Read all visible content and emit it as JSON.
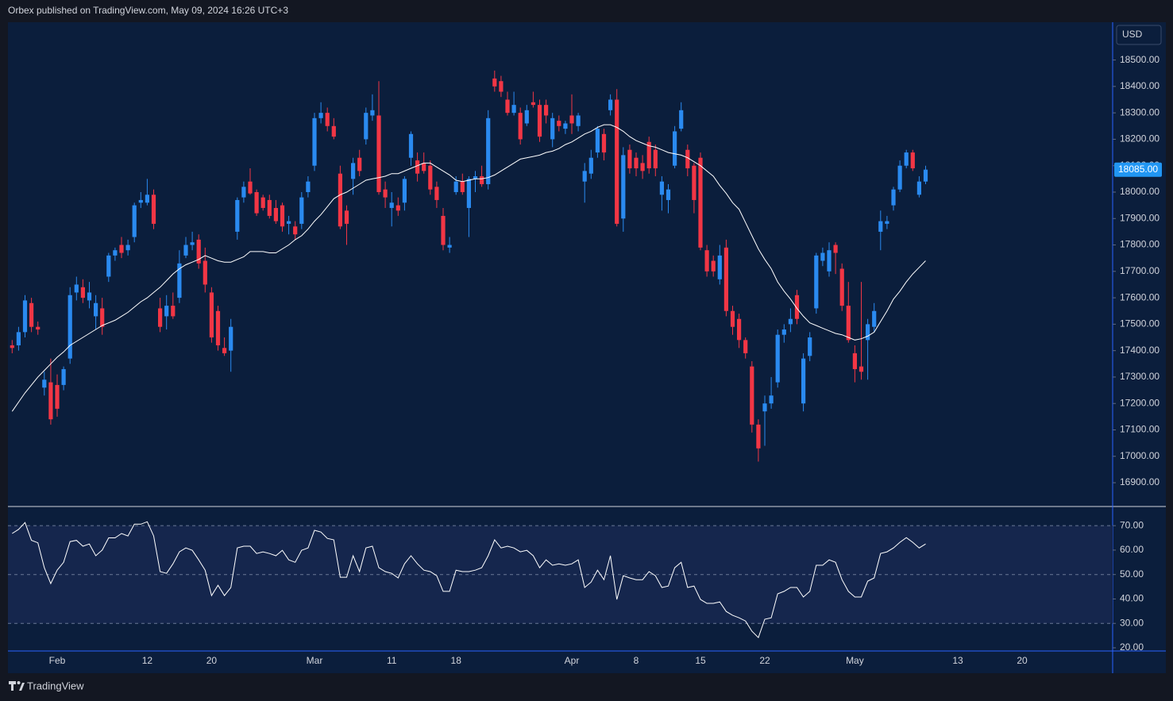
{
  "header": {
    "text": "Orbex published on TradingView.com, May 09, 2024 16:26 UTC+3"
  },
  "currency": "USD",
  "footer": {
    "brand": "TradingView"
  },
  "chart_data": [
    {
      "type": "candlestick",
      "categories": [
        null,
        null,
        null,
        null,
        null,
        null,
        null,
        "Feb",
        null,
        null,
        null,
        null,
        null,
        null,
        null,
        null,
        null,
        null,
        null,
        null,
        null,
        "12",
        null,
        null,
        null,
        null,
        null,
        null,
        null,
        null,
        null,
        "20",
        null,
        null,
        null,
        null,
        null,
        null,
        null,
        null,
        null,
        null,
        null,
        null,
        null,
        null,
        null,
        "Mar",
        null,
        null,
        null,
        null,
        null,
        null,
        null,
        null,
        null,
        null,
        null,
        "11",
        null,
        null,
        null,
        null,
        null,
        null,
        null,
        null,
        null,
        "18",
        null,
        null,
        null,
        null,
        null,
        null,
        null,
        null,
        null,
        null,
        null,
        null,
        null,
        null,
        null,
        null,
        null,
        "Apr",
        null,
        null,
        null,
        null,
        null,
        null,
        null,
        null,
        null,
        "8",
        null,
        null,
        null,
        null,
        null,
        null,
        null,
        null,
        null,
        "15",
        null,
        null,
        null,
        null,
        null,
        null,
        null,
        null,
        null,
        "22",
        null,
        null,
        null,
        null,
        null,
        null,
        null,
        null,
        null,
        null,
        null,
        null,
        null,
        "May",
        null,
        null,
        null,
        null,
        null,
        null,
        null,
        null,
        null,
        null,
        null,
        null,
        null,
        null,
        null,
        "13",
        null,
        null,
        null,
        null,
        null,
        null,
        null,
        null,
        null,
        "20"
      ],
      "open": [
        17420,
        17420,
        17470,
        17580,
        17490,
        17260,
        17280,
        17270,
        17270,
        17370,
        17620,
        17640,
        17590,
        17530,
        17560,
        17680,
        17760,
        17800,
        17780,
        17830,
        17960,
        17960,
        17990,
        17560,
        17530,
        17570,
        17600,
        17760,
        17800,
        17820,
        17740,
        17620,
        17550,
        17410,
        17400,
        17850,
        17980,
        18040,
        18000,
        17980,
        17970,
        17940,
        17950,
        17880,
        17870,
        17880,
        18000,
        18100,
        18280,
        18300,
        18250,
        18070,
        17930,
        18050,
        18130,
        18200,
        18290,
        18290,
        18010,
        17940,
        17950,
        17960,
        18130,
        18120,
        18110,
        18100,
        18020,
        17910,
        17790,
        18000,
        18040,
        17940,
        18050,
        18060,
        18030,
        18430,
        18420,
        18350,
        18300,
        18300,
        18260,
        18340,
        18330,
        18330,
        18200,
        18270,
        18240,
        18290,
        18250,
        18040,
        18070,
        18150,
        18220,
        18310,
        18350,
        17900,
        18160,
        18130,
        18110,
        18190,
        18160,
        17990,
        17970,
        18100,
        18240,
        18160,
        18100,
        18130,
        17780,
        17740,
        17670,
        17790,
        17550,
        17520,
        17440,
        17340,
        17120,
        17170,
        17200,
        17280,
        17460,
        17500,
        17610,
        17200,
        17380,
        17560,
        17740,
        17700,
        17800,
        17710,
        17570,
        17390,
        17340,
        17440,
        17490,
        17850,
        17880,
        17950,
        18010,
        18100,
        18150,
        17990,
        18040,
        null,
        null,
        null,
        null,
        null,
        null,
        null,
        null,
        null,
        null,
        null,
        null,
        null,
        null,
        null
      ],
      "high": [
        17440,
        17490,
        17610,
        17600,
        17510,
        17320,
        17370,
        17310,
        17340,
        17640,
        17680,
        17670,
        17660,
        17610,
        17600,
        17770,
        17790,
        17830,
        17820,
        17960,
        18000,
        18050,
        18010,
        17600,
        17610,
        17620,
        17780,
        17830,
        17850,
        17840,
        17790,
        17640,
        17570,
        17450,
        17520,
        17980,
        18040,
        18090,
        18010,
        17990,
        17990,
        17970,
        17960,
        17910,
        17890,
        18000,
        18060,
        18300,
        18340,
        18320,
        18280,
        18100,
        17950,
        18130,
        18160,
        18320,
        18370,
        18420,
        18040,
        18000,
        17980,
        18060,
        18230,
        18150,
        18150,
        18120,
        18040,
        17940,
        17830,
        18060,
        18070,
        18060,
        18080,
        18100,
        18310,
        18460,
        18440,
        18380,
        18380,
        18320,
        18330,
        18380,
        18350,
        18350,
        18300,
        18290,
        18270,
        18370,
        18300,
        18110,
        18160,
        18250,
        18240,
        18370,
        18390,
        18170,
        18180,
        18150,
        18140,
        18210,
        18180,
        18060,
        18030,
        18250,
        18340,
        18180,
        18110,
        18150,
        17800,
        17760,
        17800,
        17820,
        17570,
        17540,
        17450,
        17360,
        17140,
        17230,
        17300,
        17480,
        17500,
        17560,
        17630,
        17390,
        17470,
        17770,
        17790,
        17810,
        17810,
        17730,
        17660,
        17420,
        17660,
        17520,
        17580,
        17930,
        17910,
        18020,
        18120,
        18160,
        18160,
        18060,
        18100,
        null,
        null,
        null,
        null,
        null,
        null,
        null,
        null,
        null,
        null,
        null,
        null,
        null,
        null,
        null
      ],
      "low": [
        17390,
        17400,
        17450,
        17470,
        17460,
        17230,
        17120,
        17150,
        17250,
        17350,
        17590,
        17580,
        17560,
        17480,
        17460,
        17660,
        17740,
        17750,
        17760,
        17810,
        17940,
        17950,
        17860,
        17470,
        17480,
        17520,
        17580,
        17750,
        17780,
        17710,
        17620,
        17430,
        17400,
        17380,
        17320,
        17820,
        17960,
        17990,
        17910,
        17930,
        17900,
        17880,
        17850,
        17840,
        17820,
        17860,
        17980,
        18080,
        18260,
        18230,
        18200,
        17860,
        17800,
        17990,
        18060,
        18180,
        18270,
        17990,
        17940,
        17870,
        17910,
        17930,
        18100,
        18040,
        18070,
        17990,
        17940,
        17780,
        17770,
        17990,
        17990,
        17830,
        18000,
        18020,
        18010,
        18380,
        18360,
        18290,
        18290,
        18180,
        18250,
        18320,
        18190,
        18260,
        18170,
        18230,
        18220,
        18220,
        18230,
        17960,
        18050,
        18130,
        18120,
        18290,
        17870,
        17850,
        18070,
        18060,
        18050,
        18070,
        18060,
        17930,
        17920,
        18090,
        18230,
        18060,
        17920,
        17780,
        17680,
        17680,
        17650,
        17530,
        17460,
        17410,
        17370,
        17090,
        16980,
        17040,
        17180,
        17260,
        17430,
        17470,
        17500,
        17170,
        17360,
        17540,
        17720,
        17680,
        17690,
        17550,
        17430,
        17280,
        17290,
        17290,
        17470,
        17780,
        17860,
        17930,
        18000,
        18090,
        18080,
        17980,
        18030,
        null,
        null,
        null,
        null,
        null,
        null,
        null,
        null,
        null,
        null,
        null,
        null,
        null,
        null,
        null
      ],
      "close": [
        17410,
        17470,
        17590,
        17490,
        17480,
        17290,
        17140,
        17180,
        17330,
        17610,
        17650,
        17600,
        17620,
        17580,
        17490,
        17760,
        17780,
        17770,
        17800,
        17950,
        17970,
        17990,
        17880,
        17490,
        17570,
        17530,
        17730,
        17800,
        17810,
        17730,
        17650,
        17450,
        17420,
        17390,
        17490,
        17970,
        18020,
        17995,
        17920,
        17940,
        17910,
        17890,
        17870,
        17890,
        17840,
        17980,
        18040,
        18280,
        18300,
        18250,
        18210,
        17870,
        17880,
        18110,
        18080,
        18300,
        18310,
        18000,
        17980,
        17960,
        17930,
        18050,
        18220,
        18070,
        18080,
        18010,
        17970,
        17800,
        17800,
        18040,
        18000,
        18050,
        18060,
        18030,
        18280,
        18400,
        18380,
        18300,
        18330,
        18200,
        18310,
        18330,
        18210,
        18290,
        18280,
        18250,
        18260,
        18260,
        18290,
        18080,
        18130,
        18240,
        18150,
        18350,
        17880,
        18140,
        18090,
        18090,
        18080,
        18090,
        18090,
        18040,
        18010,
        18230,
        18310,
        18090,
        17970,
        17790,
        17700,
        17700,
        17760,
        17550,
        17490,
        17440,
        17390,
        17120,
        17030,
        17200,
        17230,
        17460,
        17480,
        17520,
        17520,
        17370,
        17450,
        17760,
        17770,
        17780,
        17770,
        17570,
        17440,
        17330,
        17320,
        17500,
        17550,
        17890,
        17890,
        18010,
        18100,
        18150,
        18090,
        18040,
        18085,
        null,
        null,
        null,
        null,
        null,
        null,
        null,
        null,
        null,
        null,
        null,
        null,
        null,
        null,
        null
      ],
      "up_color": "#2a8af0",
      "down_color": "#f23645",
      "line": {
        "color": "#ffffff",
        "values": [
          17170,
          17205,
          17240,
          17270,
          17300,
          17325,
          17350,
          17375,
          17395,
          17420,
          17435,
          17450,
          17465,
          17480,
          17495,
          17505,
          17515,
          17530,
          17545,
          17565,
          17585,
          17600,
          17620,
          17640,
          17665,
          17690,
          17710,
          17725,
          17735,
          17745,
          17760,
          17750,
          17740,
          17735,
          17735,
          17745,
          17755,
          17775,
          17775,
          17775,
          17770,
          17770,
          17785,
          17800,
          17820,
          17835,
          17860,
          17890,
          17915,
          17945,
          17975,
          17990,
          18000,
          18015,
          18030,
          18045,
          18050,
          18055,
          18060,
          18070,
          18070,
          18080,
          18090,
          18100,
          18110,
          18110,
          18095,
          18080,
          18065,
          18045,
          18040,
          18045,
          18050,
          18050,
          18055,
          18065,
          18080,
          18095,
          18110,
          18125,
          18130,
          18135,
          18140,
          18150,
          18155,
          18165,
          18180,
          18190,
          18205,
          18220,
          18230,
          18245,
          18255,
          18255,
          18245,
          18230,
          18210,
          18195,
          18185,
          18175,
          18170,
          18160,
          18150,
          18145,
          18140,
          18130,
          18115,
          18100,
          18080,
          18060,
          18025,
          17995,
          17960,
          17935,
          17885,
          17835,
          17785,
          17745,
          17710,
          17660,
          17625,
          17595,
          17560,
          17530,
          17505,
          17495,
          17485,
          17475,
          17465,
          17460,
          17450,
          17440,
          17445,
          17455,
          17470,
          17510,
          17550,
          17595,
          17625,
          17660,
          17690,
          17715,
          17740,
          null,
          null,
          null,
          null,
          null,
          null,
          null,
          null,
          null,
          null,
          null,
          null,
          null,
          null,
          null
        ]
      },
      "last_price": {
        "value": 18085,
        "label": "18085.00"
      },
      "ylim": [
        16810,
        18643
      ],
      "yticks": [
        {
          "value": 16900,
          "label": "16900.00"
        },
        {
          "value": 17000,
          "label": "17000.00"
        },
        {
          "value": 17100,
          "label": "17100.00"
        },
        {
          "value": 17200,
          "label": "17200.00"
        },
        {
          "value": 17300,
          "label": "17300.00"
        },
        {
          "value": 17400,
          "label": "17400.00"
        },
        {
          "value": 17500,
          "label": "17500.00"
        },
        {
          "value": 17600,
          "label": "17600.00"
        },
        {
          "value": 17700,
          "label": "17700.00"
        },
        {
          "value": 17800,
          "label": "17800.00"
        },
        {
          "value": 17900,
          "label": "17900.00"
        },
        {
          "value": 18000,
          "label": "18000.00"
        },
        {
          "value": 18100,
          "label": "18100.00"
        },
        {
          "value": 18200,
          "label": "18200.00"
        },
        {
          "value": 18300,
          "label": "18300.00"
        },
        {
          "value": 18400,
          "label": "18400.00"
        },
        {
          "value": 18500,
          "label": "18500.00"
        }
      ],
      "grid": false
    },
    {
      "type": "line",
      "color": "#ffffff",
      "values": [
        66.8,
        68.5,
        71.3,
        64.0,
        63.0,
        52.8,
        46.3,
        51.8,
        55.0,
        63.5,
        64.0,
        61.6,
        62.5,
        57.7,
        60.0,
        65.0,
        65.0,
        66.8,
        65.8,
        70.6,
        70.6,
        71.6,
        65.8,
        51.2,
        50.5,
        54.4,
        59.3,
        60.9,
        59.9,
        56.0,
        51.8,
        41.4,
        45.6,
        41.4,
        44.7,
        60.9,
        61.6,
        61.6,
        58.6,
        59.3,
        58.6,
        57.7,
        59.9,
        56.0,
        55.0,
        59.9,
        60.9,
        68.1,
        67.4,
        64.8,
        64.2,
        48.9,
        48.9,
        57.7,
        51.2,
        60.9,
        61.6,
        52.8,
        51.2,
        50.5,
        48.6,
        54.4,
        57.7,
        54.4,
        51.8,
        51.2,
        49.5,
        43.1,
        43.1,
        51.8,
        51.2,
        51.2,
        51.8,
        52.8,
        57.7,
        64.2,
        60.9,
        61.6,
        60.9,
        59.3,
        59.9,
        57.7,
        52.8,
        56.0,
        53.8,
        54.4,
        53.8,
        54.4,
        56.0,
        44.7,
        46.9,
        51.8,
        47.9,
        57.7,
        39.8,
        49.5,
        48.6,
        47.9,
        47.9,
        51.2,
        49.5,
        44.7,
        45.3,
        52.8,
        55.0,
        44.7,
        45.3,
        39.8,
        38.2,
        38.2,
        38.8,
        34.9,
        33.3,
        32.3,
        31.0,
        26.8,
        24.2,
        31.7,
        32.3,
        42.1,
        43.1,
        44.7,
        44.7,
        40.8,
        43.1,
        53.8,
        53.8,
        56.0,
        55.0,
        47.9,
        43.1,
        40.8,
        40.8,
        47.3,
        48.6,
        58.6,
        59.3,
        60.9,
        63.2,
        65.1,
        63.2,
        60.9,
        62.5,
        null,
        null,
        null,
        null,
        null,
        null,
        null,
        null,
        null,
        null,
        null,
        null,
        null,
        null,
        null
      ],
      "ylim": [
        18.7,
        77.2
      ],
      "yticks": [
        {
          "value": 20,
          "label": "20.00"
        },
        {
          "value": 30,
          "label": "30.00"
        },
        {
          "value": 40,
          "label": "40.00"
        },
        {
          "value": 50,
          "label": "50.00"
        },
        {
          "value": 60,
          "label": "60.00"
        },
        {
          "value": 70,
          "label": "70.00"
        }
      ],
      "levels": [
        30,
        50,
        70
      ],
      "band": [
        30,
        70
      ]
    }
  ]
}
